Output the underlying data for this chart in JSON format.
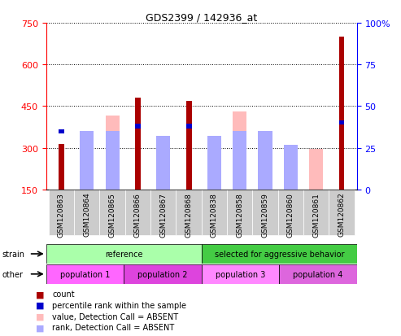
{
  "title": "GDS2399 / 142936_at",
  "samples": [
    "GSM120863",
    "GSM120864",
    "GSM120865",
    "GSM120866",
    "GSM120867",
    "GSM120868",
    "GSM120838",
    "GSM120858",
    "GSM120859",
    "GSM120860",
    "GSM120861",
    "GSM120862"
  ],
  "count_values": [
    315,
    0,
    0,
    480,
    0,
    470,
    0,
    0,
    0,
    0,
    0,
    700
  ],
  "absent_value_bars": [
    0,
    328,
    415,
    0,
    330,
    0,
    330,
    430,
    328,
    215,
    295,
    0
  ],
  "percentile_rank": [
    35,
    0,
    0,
    38,
    0,
    38,
    0,
    0,
    0,
    0,
    0,
    40
  ],
  "absent_rank_vals": [
    0,
    35,
    35,
    0,
    32,
    0,
    32,
    35,
    35,
    27,
    0,
    0
  ],
  "count_color": "#aa0000",
  "absent_value_color": "#ffbbbb",
  "percentile_color": "#0000cc",
  "absent_rank_color": "#aaaaff",
  "ylim_left": [
    150,
    750
  ],
  "ylim_right": [
    0,
    100
  ],
  "yticks_left": [
    150,
    300,
    450,
    600,
    750
  ],
  "yticks_right": [
    0,
    25,
    50,
    75,
    100
  ],
  "strain_groups": [
    {
      "label": "reference",
      "start": 0,
      "end": 6,
      "color": "#aaffaa"
    },
    {
      "label": "selected for aggressive behavior",
      "start": 6,
      "end": 12,
      "color": "#44cc44"
    }
  ],
  "population_groups": [
    {
      "label": "population 1",
      "start": 0,
      "end": 3,
      "color": "#ff66ff"
    },
    {
      "label": "population 2",
      "start": 3,
      "end": 6,
      "color": "#dd44dd"
    },
    {
      "label": "population 3",
      "start": 6,
      "end": 9,
      "color": "#ff88ff"
    },
    {
      "label": "population 4",
      "start": 9,
      "end": 12,
      "color": "#dd66dd"
    }
  ],
  "legend_items": [
    {
      "label": "count",
      "color": "#aa0000"
    },
    {
      "label": "percentile rank within the sample",
      "color": "#0000cc"
    },
    {
      "label": "value, Detection Call = ABSENT",
      "color": "#ffbbbb"
    },
    {
      "label": "rank, Detection Call = ABSENT",
      "color": "#aaaaff"
    }
  ],
  "tick_bg_color": "#cccccc",
  "n_samples": 12
}
